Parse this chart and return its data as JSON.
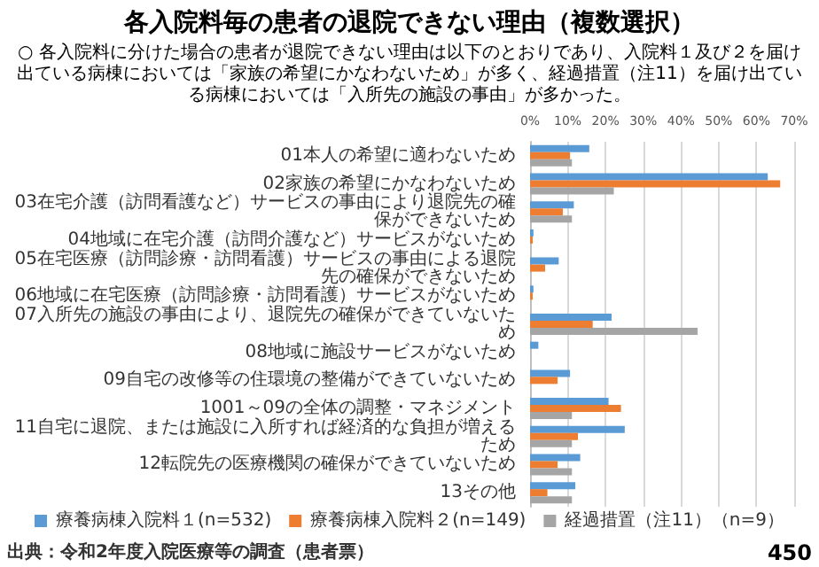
{
  "chart_data": {
    "type": "bar",
    "orientation": "horizontal",
    "title": "各入院料毎の患者の退院できない理由（複数選択）",
    "subtitle": "○ 各入院料に分けた場合の患者が退院できない理由は以下のとおりであり、入院料１及び２を届け出ている病棟においては「家族の希望にかなわないため」が多く、経過措置（注11）を届け出ている病棟においては「入所先の施設の事由」が多かった。",
    "categories": [
      "01本人の希望に適わないため",
      "02家族の希望にかなわないため",
      "03在宅介護（訪問看護など）サービスの事由により退院先の確保ができないため",
      "04地域に在宅介護（訪問介護など）サービスがないため",
      "05在宅医療（訪問診療・訪問看護）サービスの事由による退院先の確保ができないため",
      "06地域に在宅医療（訪問診療・訪問看護）サービスがないため",
      "07入所先の施設の事由により、退院先の確保ができていないため",
      "08地域に施設サービスがないため",
      "09自宅の改修等の住環境の整備ができていないため",
      "1001～09の全体の調整・マネジメント",
      "11自宅に退院、または施設に入所すれば経済的な負担が増えるため",
      "12転院先の医療機関の確保ができていないため",
      "13その他"
    ],
    "series": [
      {
        "name": "療養病棟入院料１(n=532)",
        "color": "#5b9bd5",
        "values": [
          15.7,
          63.0,
          11.6,
          0.9,
          7.6,
          0.9,
          21.6,
          2.2,
          10.6,
          20.8,
          25.1,
          13.3,
          12.0
        ]
      },
      {
        "name": "療養病棟入院料２(n=149)",
        "color": "#ed7d31",
        "values": [
          10.6,
          66.3,
          8.7,
          0.7,
          4.0,
          0.7,
          16.6,
          0,
          7.3,
          24.1,
          12.7,
          7.3,
          4.6
        ]
      },
      {
        "name": "経過措置（注11）（n=9）",
        "color": "#a5a5a5",
        "values": [
          11.1,
          22.2,
          11.1,
          0,
          0,
          0,
          44.4,
          0,
          0,
          11.1,
          11.1,
          11.1,
          11.1
        ]
      }
    ],
    "xlim": [
      0,
      70
    ],
    "xticks": [
      {
        "value": 0,
        "label": "0%"
      },
      {
        "value": 10,
        "label": "10%"
      },
      {
        "value": 20,
        "label": "20%"
      },
      {
        "value": 30,
        "label": "30%"
      },
      {
        "value": 40,
        "label": "40%"
      },
      {
        "value": 50,
        "label": "50%"
      },
      {
        "value": 60,
        "label": "60%"
      },
      {
        "value": 70,
        "label": "70%"
      }
    ],
    "grid": "x",
    "legend": "bottom",
    "annotations": [
      "出典：令和2年度入院医療等の調査（患者票）",
      "450"
    ]
  }
}
